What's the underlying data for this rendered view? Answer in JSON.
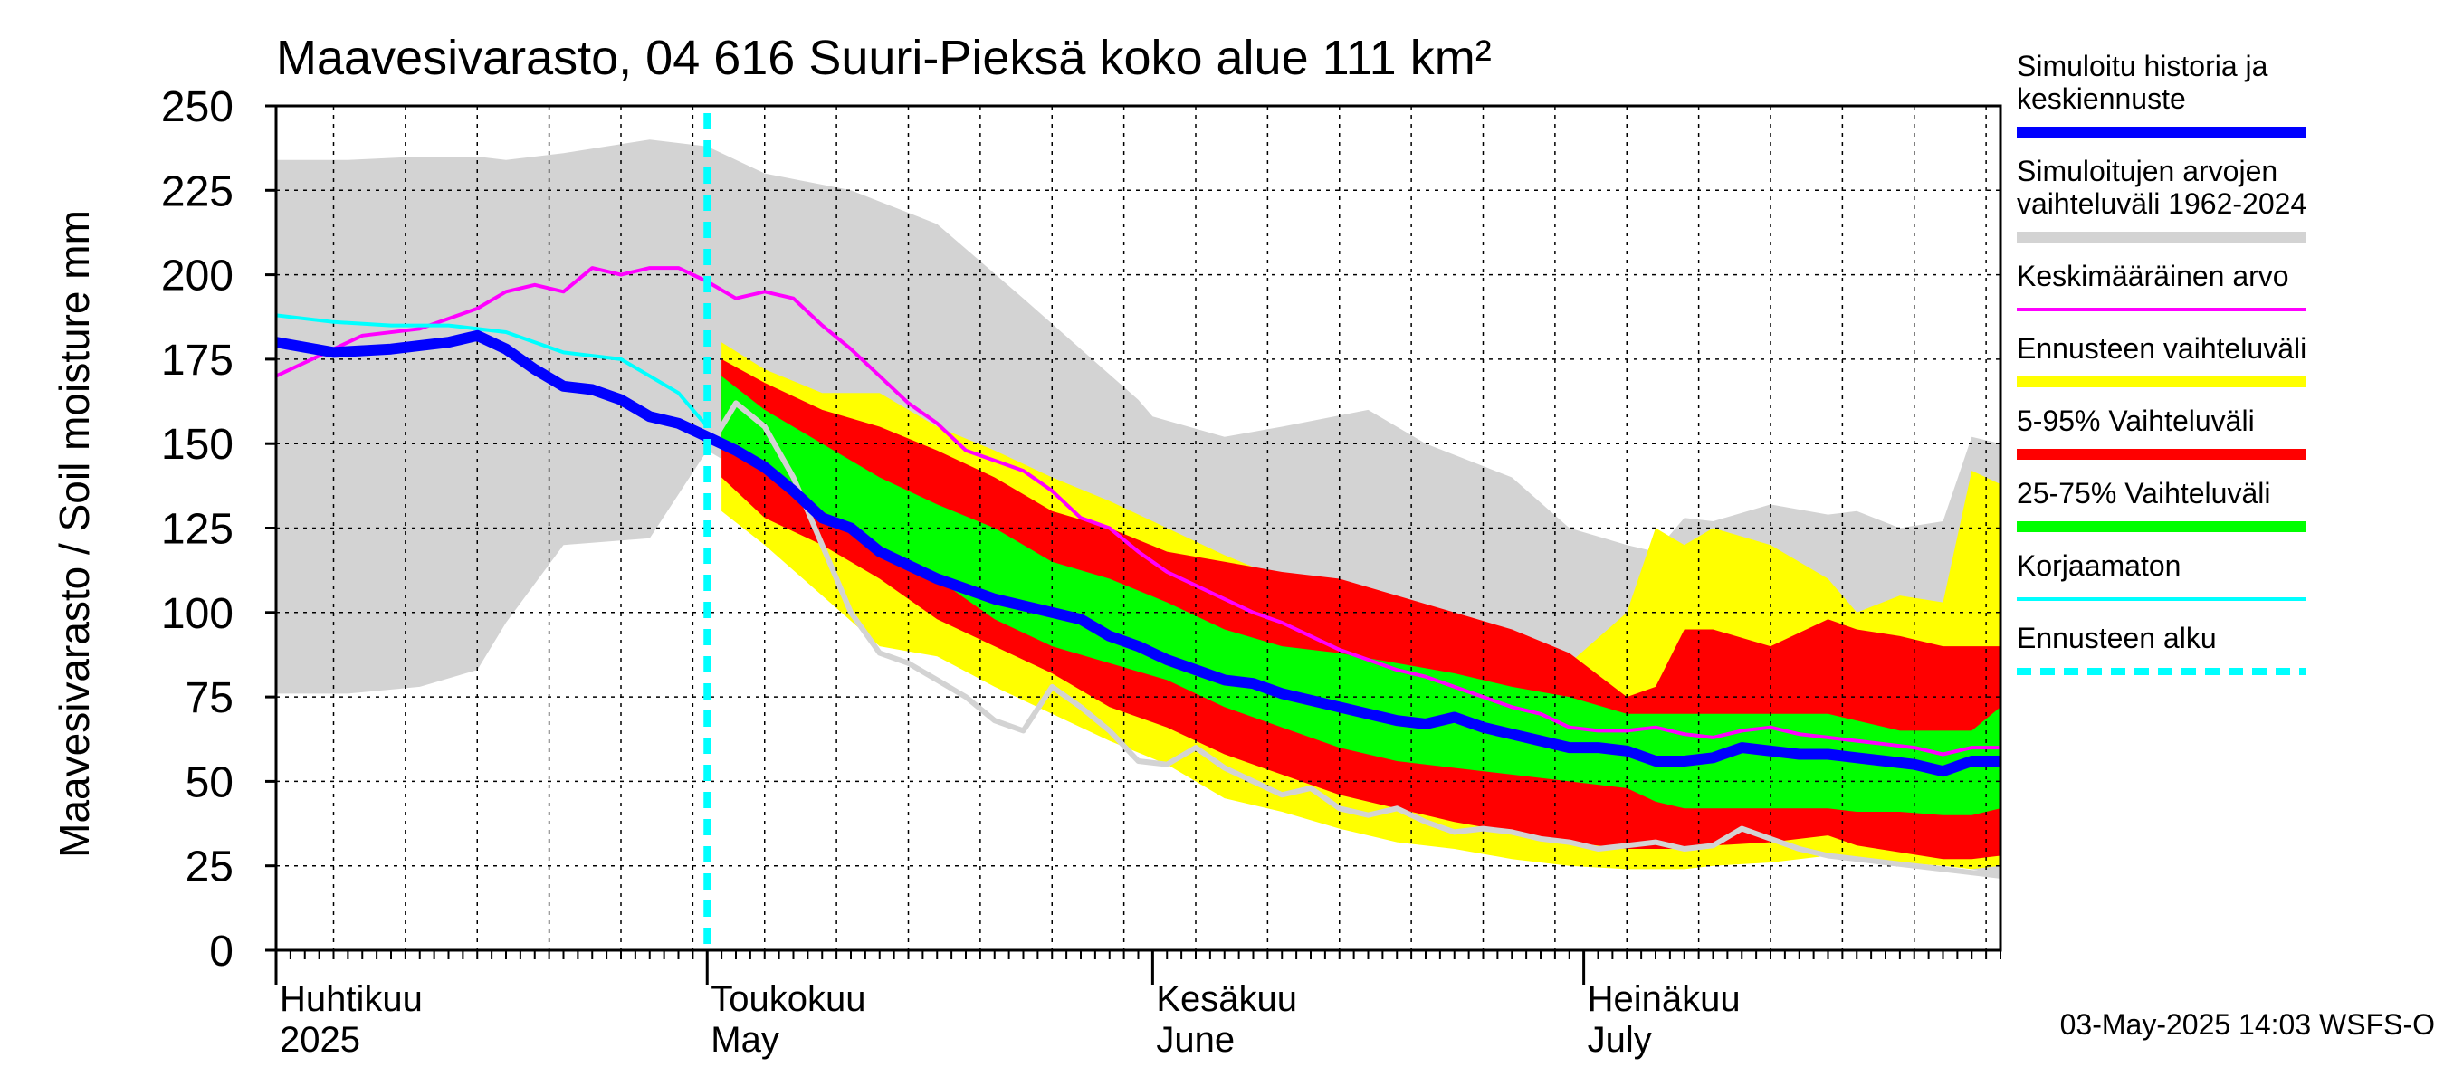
{
  "chart_data": {
    "type": "area",
    "title": "Maavesivarasto, 04 616 Suuri-Pieksä koko alue 111 km²",
    "ylabel": "Maavesivarasto / Soil moisture   mm",
    "ylim": [
      0,
      250
    ],
    "yticks": [
      0,
      25,
      50,
      75,
      100,
      125,
      150,
      175,
      200,
      225,
      250
    ],
    "x_unit": "days since 2025-03-31",
    "xlim": [
      0,
      120
    ],
    "forecast_start_day": 30,
    "month_labels": [
      {
        "day": 0,
        "fi": "Huhtikuu",
        "en": "2025"
      },
      {
        "day": 30,
        "fi": "Toukokuu",
        "en": "May"
      },
      {
        "day": 61,
        "fi": "Kesäkuu",
        "en": "June"
      },
      {
        "day": 91,
        "fi": "Heinäkuu",
        "en": "July"
      }
    ],
    "bands": [
      {
        "name": "Simuloitujen arvojen vaihteluväli 1962-2024",
        "color": "#d3d3d3",
        "x": [
          0,
          5,
          10,
          14,
          16,
          20,
          26,
          30,
          34,
          40,
          46,
          52,
          56,
          60,
          61,
          66,
          70,
          76,
          80,
          86,
          90,
          94,
          96,
          98,
          100,
          104,
          108,
          110,
          113,
          116,
          118,
          120
        ],
        "upper": [
          234,
          234,
          235,
          235,
          234,
          236,
          240,
          238,
          230,
          225,
          215,
          193,
          178,
          163,
          158,
          152,
          155,
          160,
          150,
          140,
          125,
          120,
          118,
          128,
          127,
          132,
          129,
          130,
          125,
          127,
          152,
          150
        ],
        "lower": [
          76,
          76,
          78,
          83,
          97,
          120,
          122,
          148,
          138,
          118,
          100,
          88,
          78,
          73,
          72,
          65,
          58,
          52,
          48,
          42,
          38,
          36,
          32,
          30,
          28,
          28,
          30,
          30,
          27,
          25,
          24,
          22
        ]
      },
      {
        "name": "Ennusteen vaihteluväli",
        "color": "#ffff00",
        "x": [
          31,
          34,
          38,
          42,
          46,
          50,
          54,
          58,
          62,
          66,
          70,
          74,
          78,
          82,
          86,
          90,
          94,
          96,
          98,
          100,
          104,
          108,
          110,
          113,
          116,
          118,
          120
        ],
        "upper": [
          180,
          172,
          165,
          165,
          155,
          148,
          140,
          133,
          125,
          117,
          110,
          110,
          100,
          95,
          92,
          85,
          100,
          125,
          120,
          125,
          120,
          110,
          100,
          105,
          103,
          142,
          138
        ],
        "lower": [
          130,
          120,
          105,
          90,
          87,
          78,
          70,
          62,
          55,
          45,
          41,
          36,
          32,
          30,
          27,
          25,
          24,
          24,
          24,
          25,
          26,
          28,
          27,
          26,
          25,
          24,
          25
        ]
      },
      {
        "name": "5-95% Vaihteluväli",
        "color": "#ff0000",
        "x": [
          31,
          34,
          38,
          42,
          46,
          50,
          54,
          58,
          62,
          66,
          70,
          74,
          78,
          82,
          86,
          90,
          94,
          96,
          98,
          100,
          104,
          108,
          110,
          113,
          116,
          118,
          120
        ],
        "upper": [
          175,
          168,
          160,
          155,
          148,
          140,
          130,
          125,
          118,
          115,
          112,
          110,
          105,
          100,
          95,
          88,
          75,
          78,
          95,
          95,
          90,
          98,
          95,
          93,
          90,
          90,
          90
        ],
        "lower": [
          140,
          128,
          120,
          110,
          98,
          90,
          82,
          72,
          66,
          58,
          52,
          46,
          42,
          38,
          35,
          32,
          30,
          30,
          30,
          31,
          32,
          34,
          31,
          29,
          27,
          27,
          28
        ]
      },
      {
        "name": "25-75% Vaihteluväli",
        "color": "#00ff00",
        "x": [
          31,
          34,
          38,
          42,
          46,
          50,
          54,
          58,
          62,
          66,
          70,
          74,
          78,
          82,
          86,
          90,
          94,
          96,
          98,
          100,
          104,
          108,
          110,
          113,
          116,
          118,
          120
        ],
        "upper": [
          170,
          160,
          150,
          140,
          132,
          125,
          115,
          110,
          103,
          95,
          90,
          88,
          85,
          82,
          78,
          75,
          70,
          70,
          70,
          70,
          70,
          70,
          68,
          65,
          65,
          65,
          72
        ],
        "lower": [
          150,
          145,
          130,
          120,
          110,
          98,
          90,
          85,
          80,
          72,
          66,
          60,
          56,
          54,
          52,
          50,
          48,
          44,
          42,
          42,
          42,
          42,
          41,
          41,
          40,
          40,
          42
        ]
      }
    ],
    "series": [
      {
        "name": "Keskimääräinen arvo",
        "color": "#ff00ff",
        "width": 4,
        "x": [
          0,
          4,
          6,
          10,
          14,
          16,
          18,
          20,
          22,
          24,
          26,
          28,
          30,
          32,
          34,
          36,
          38,
          40,
          42,
          44,
          46,
          48,
          50,
          52,
          54,
          56,
          58,
          60,
          62,
          64,
          66,
          68,
          70,
          72,
          74,
          76,
          78,
          80,
          82,
          84,
          86,
          88,
          90,
          92,
          94,
          96,
          98,
          100,
          102,
          104,
          106,
          108,
          110,
          112,
          114,
          116,
          118,
          120
        ],
        "y": [
          170,
          178,
          182,
          184,
          190,
          195,
          197,
          195,
          202,
          200,
          202,
          202,
          198,
          193,
          195,
          193,
          185,
          178,
          170,
          162,
          156,
          148,
          145,
          142,
          136,
          128,
          125,
          118,
          112,
          108,
          104,
          100,
          97,
          93,
          89,
          86,
          83,
          81,
          78,
          75,
          72,
          70,
          66,
          65,
          65,
          66,
          64,
          63,
          65,
          66,
          64,
          63,
          62,
          61,
          60,
          58,
          60,
          60
        ]
      },
      {
        "name": "Korjaamaton",
        "color": "#00ffff",
        "width": 4,
        "x": [
          0,
          4,
          8,
          12,
          16,
          20,
          24,
          28,
          30
        ],
        "y": [
          188,
          186,
          185,
          185,
          183,
          177,
          175,
          165,
          155
        ]
      },
      {
        "name": "Korjaamaton (ennuste)",
        "color": "#d3d3d3",
        "width": 6,
        "x": [
          30,
          32,
          34,
          36,
          38,
          40,
          42,
          44,
          46,
          48,
          50,
          52,
          54,
          56,
          58,
          60,
          62,
          64,
          66,
          68,
          70,
          72,
          74,
          76,
          78,
          80,
          82,
          84,
          86,
          88,
          90,
          92,
          94,
          96,
          98,
          100,
          102,
          104,
          106,
          108,
          110,
          112,
          114,
          116,
          118,
          120
        ],
        "y": [
          148,
          162,
          155,
          140,
          120,
          100,
          88,
          85,
          80,
          75,
          68,
          65,
          78,
          72,
          65,
          56,
          55,
          60,
          54,
          50,
          46,
          48,
          42,
          40,
          42,
          38,
          35,
          36,
          35,
          33,
          32,
          30,
          31,
          32,
          30,
          31,
          36,
          33,
          30,
          28,
          27,
          26,
          25,
          24,
          23,
          22
        ]
      },
      {
        "name": "Simuloitu historia ja keskiennuste",
        "color": "#0000ff",
        "width": 12,
        "x": [
          0,
          4,
          8,
          12,
          14,
          16,
          18,
          20,
          22,
          24,
          26,
          28,
          30,
          32,
          34,
          36,
          38,
          40,
          42,
          44,
          46,
          48,
          50,
          52,
          54,
          56,
          58,
          60,
          62,
          64,
          66,
          68,
          70,
          72,
          74,
          76,
          78,
          80,
          82,
          84,
          86,
          88,
          90,
          92,
          94,
          96,
          98,
          100,
          102,
          104,
          106,
          108,
          110,
          112,
          114,
          116,
          118,
          120
        ],
        "y": [
          180,
          177,
          178,
          180,
          182,
          178,
          172,
          167,
          166,
          163,
          158,
          156,
          152,
          148,
          143,
          136,
          128,
          125,
          118,
          114,
          110,
          107,
          104,
          102,
          100,
          98,
          93,
          90,
          86,
          83,
          80,
          79,
          76,
          74,
          72,
          70,
          68,
          67,
          69,
          66,
          64,
          62,
          60,
          60,
          59,
          56,
          56,
          57,
          60,
          59,
          58,
          58,
          57,
          56,
          55,
          53,
          56,
          56
        ]
      }
    ],
    "legend": [
      {
        "label": "Simuloitu historia ja keskiennuste",
        "color": "#0000ff",
        "style": "thick"
      },
      {
        "label": "Simuloitujen arvojen vaihteluväli 1962-2024",
        "color": "#d3d3d3",
        "style": "thick"
      },
      {
        "label": "Keskimääräinen arvo",
        "color": "#ff00ff",
        "style": "thin"
      },
      {
        "label": "Ennusteen vaihteluväli",
        "color": "#ffff00",
        "style": "thick"
      },
      {
        "label": "5-95% Vaihteluväli",
        "color": "#ff0000",
        "style": "thick"
      },
      {
        "label": "25-75% Vaihteluväli",
        "color": "#00ff00",
        "style": "thick"
      },
      {
        "label": "Korjaamaton",
        "color": "#00ffff",
        "style": "thin"
      },
      {
        "label": "Ennusteen alku",
        "color": "#00ffff",
        "style": "dashed"
      }
    ],
    "footer": "03-May-2025 14:03 WSFS-O"
  }
}
